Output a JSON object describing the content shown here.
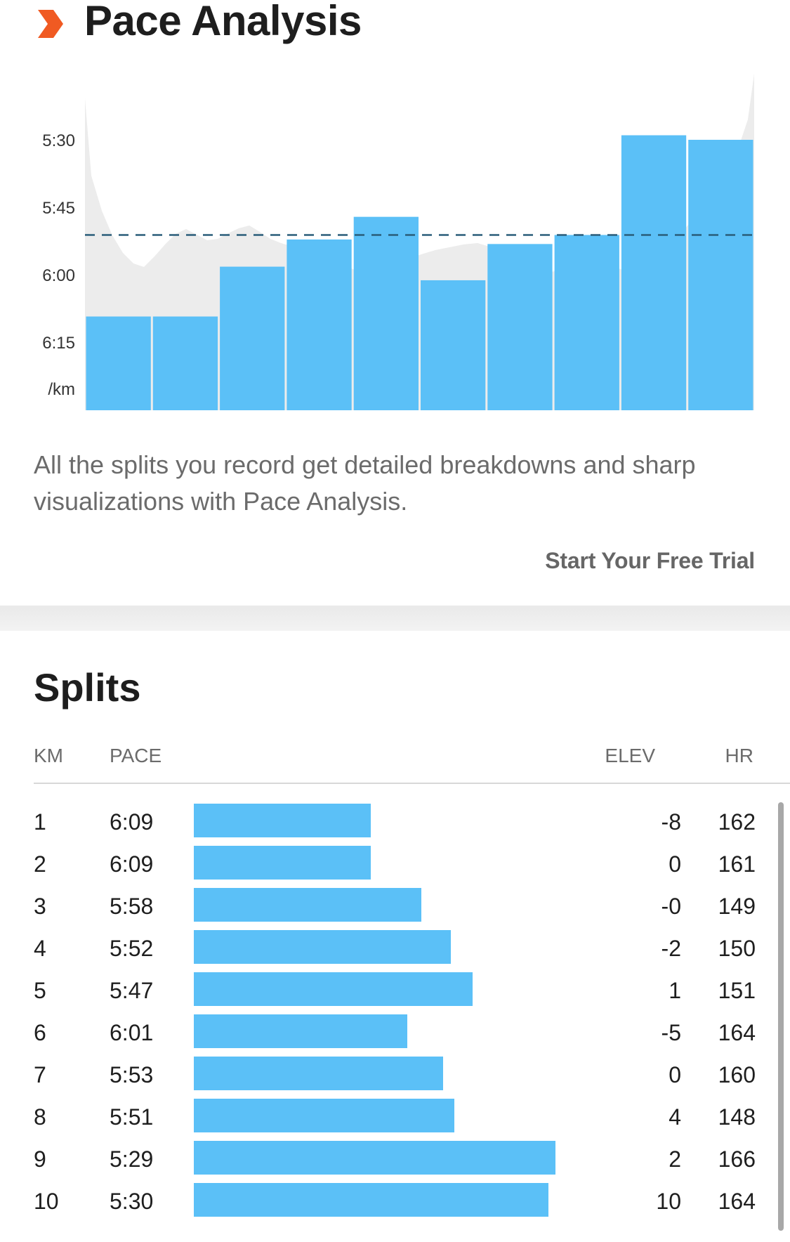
{
  "header": {
    "title": "Pace Analysis",
    "icon": "chevron-right-icon",
    "icon_color": "#f05a22"
  },
  "colors": {
    "bar": "#5bc0f7",
    "area": "#ececec",
    "avg_line": "#2a5d7a",
    "accent": "#f05a22"
  },
  "chart_data": {
    "type": "bar",
    "y_unit": "/km",
    "y_ticks": [
      "5:30",
      "5:45",
      "6:00",
      "6:15"
    ],
    "ylim_seconds": [
      330,
      375
    ],
    "y_inverted": true,
    "categories": [
      1,
      2,
      3,
      4,
      5,
      6,
      7,
      8,
      9,
      10
    ],
    "values": [
      "6:09",
      "6:09",
      "5:58",
      "5:52",
      "5:47",
      "6:01",
      "5:53",
      "5:51",
      "5:29",
      "5:30"
    ],
    "values_seconds": [
      369,
      369,
      358,
      352,
      347,
      361,
      353,
      351,
      329,
      330
    ],
    "average_line": "5:51",
    "average_seconds": 351,
    "grid": false
  },
  "promo": {
    "text": "All the splits you record get detailed breakdowns and sharp visualizations with Pace Analysis.",
    "cta": "Start Your Free Trial"
  },
  "splits": {
    "title": "Splits",
    "columns": {
      "km": "KM",
      "pace": "PACE",
      "elev": "ELEV",
      "hr": "HR"
    },
    "rows": [
      {
        "km": "1",
        "pace": "6:09",
        "elev": "-8",
        "hr": "162",
        "bar_fraction": 0.49
      },
      {
        "km": "2",
        "pace": "6:09",
        "elev": "0",
        "hr": "161",
        "bar_fraction": 0.49
      },
      {
        "km": "3",
        "pace": "5:58",
        "elev": "-0",
        "hr": "149",
        "bar_fraction": 0.63
      },
      {
        "km": "4",
        "pace": "5:52",
        "elev": "-2",
        "hr": "150",
        "bar_fraction": 0.71
      },
      {
        "km": "5",
        "pace": "5:47",
        "elev": "1",
        "hr": "151",
        "bar_fraction": 0.77
      },
      {
        "km": "6",
        "pace": "6:01",
        "elev": "-5",
        "hr": "164",
        "bar_fraction": 0.59
      },
      {
        "km": "7",
        "pace": "5:53",
        "elev": "0",
        "hr": "160",
        "bar_fraction": 0.69
      },
      {
        "km": "8",
        "pace": "5:51",
        "elev": "4",
        "hr": "148",
        "bar_fraction": 0.72
      },
      {
        "km": "9",
        "pace": "5:29",
        "elev": "2",
        "hr": "166",
        "bar_fraction": 1.0
      },
      {
        "km": "10",
        "pace": "5:30",
        "elev": "10",
        "hr": "164",
        "bar_fraction": 0.98
      }
    ]
  }
}
